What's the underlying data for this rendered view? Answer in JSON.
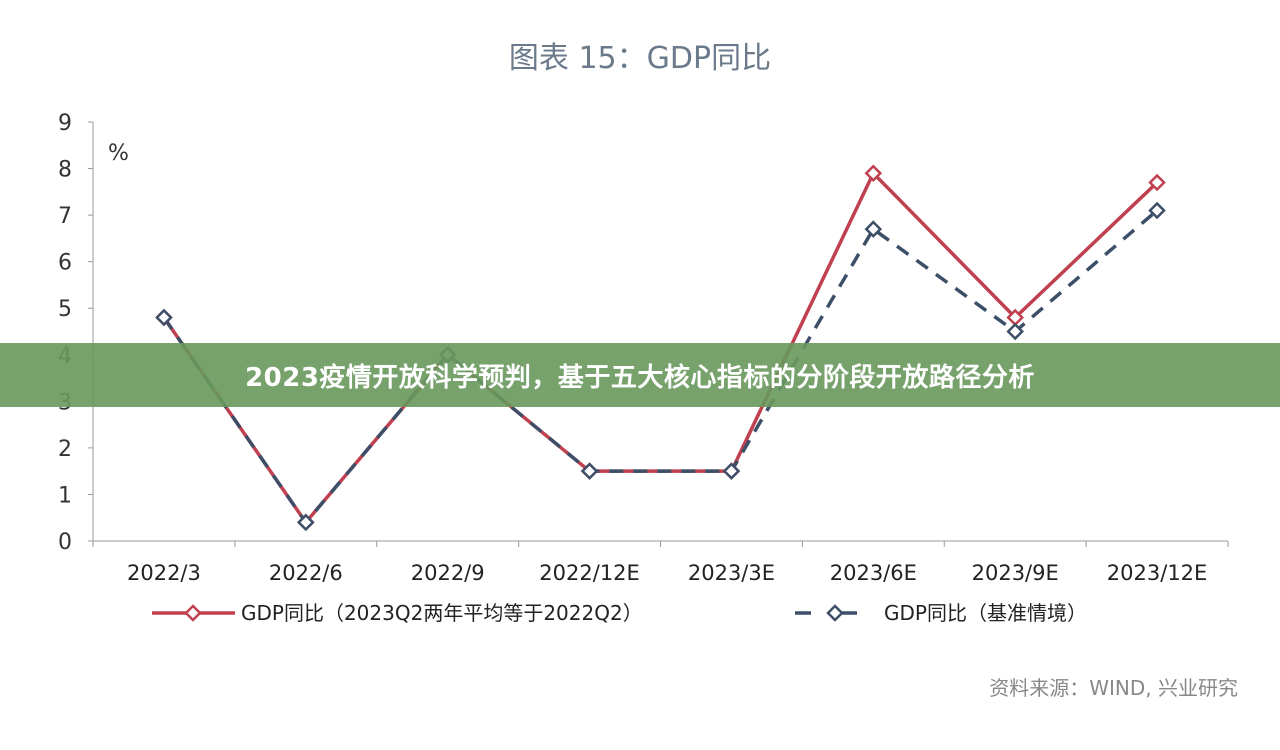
{
  "banner": {
    "text": "2023疫情开放科学预判，基于五大核心指标的分阶段开放路径分析"
  },
  "source": "资料来源：WIND, 兴业研究",
  "colors": {
    "series1": "#c0404f",
    "series2": "#3d4f68",
    "title": "#6b7a8a",
    "banner": "#68985c"
  },
  "chart_data": {
    "type": "line",
    "title": "图表 15：GDP同比",
    "ylabel": "%",
    "ylim": [
      0,
      9
    ],
    "yticks": [
      0,
      1,
      2,
      3,
      4,
      5,
      6,
      7,
      8,
      9
    ],
    "categories": [
      "2022/3",
      "2022/6",
      "2022/9",
      "2022/12E",
      "2023/3E",
      "2023/6E",
      "2023/9E",
      "2023/12E"
    ],
    "grid": false,
    "legend": "bottom",
    "series": [
      {
        "name": "GDP同比（2023Q2两年平均等于2022Q2）",
        "style": "solid",
        "values": [
          4.8,
          0.4,
          4.0,
          1.5,
          1.5,
          7.9,
          4.8,
          7.7
        ]
      },
      {
        "name": "GDP同比（基准情境）",
        "style": "dashed",
        "values": [
          4.8,
          0.4,
          4.0,
          1.5,
          1.5,
          6.7,
          4.5,
          7.1
        ]
      }
    ]
  }
}
